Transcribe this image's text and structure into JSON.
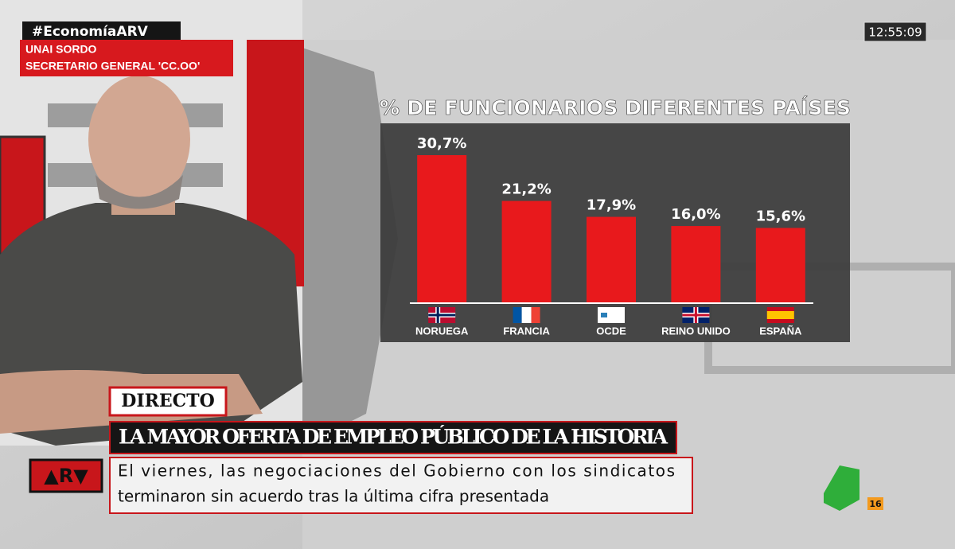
{
  "header": {
    "hashtag": "#EconomíaARV",
    "speaker_name": "UNAI SORDO",
    "speaker_role": "SECRETARIO GENERAL 'CC.OO'",
    "clock": "12:55:09"
  },
  "chart_data": {
    "type": "bar",
    "title": "% DE FUNCIONARIOS DIFERENTES PAÍSES",
    "categories": [
      "NORUEGA",
      "FRANCIA",
      "OCDE",
      "REINO UNIDO",
      "ESPAÑA"
    ],
    "values": [
      30.7,
      21.2,
      17.9,
      16.0,
      15.6
    ],
    "value_labels": [
      "30,7%",
      "21,2%",
      "17,9%",
      "16,0%",
      "15,6%"
    ],
    "color": "#e8191c"
  },
  "lower_third": {
    "live": "DIRECTO",
    "headline": "LA MAYOR OFERTA DE EMPLEO PÚBLICO DE LA HISTORIA",
    "subtitle_lines": [
      "El viernes, las negociaciones del Gobierno con los sindicatos",
      "terminaron sin acuerdo tras la última cifra presentada"
    ]
  },
  "logos": {
    "program": "▲R▼",
    "channel_badge": "16"
  }
}
